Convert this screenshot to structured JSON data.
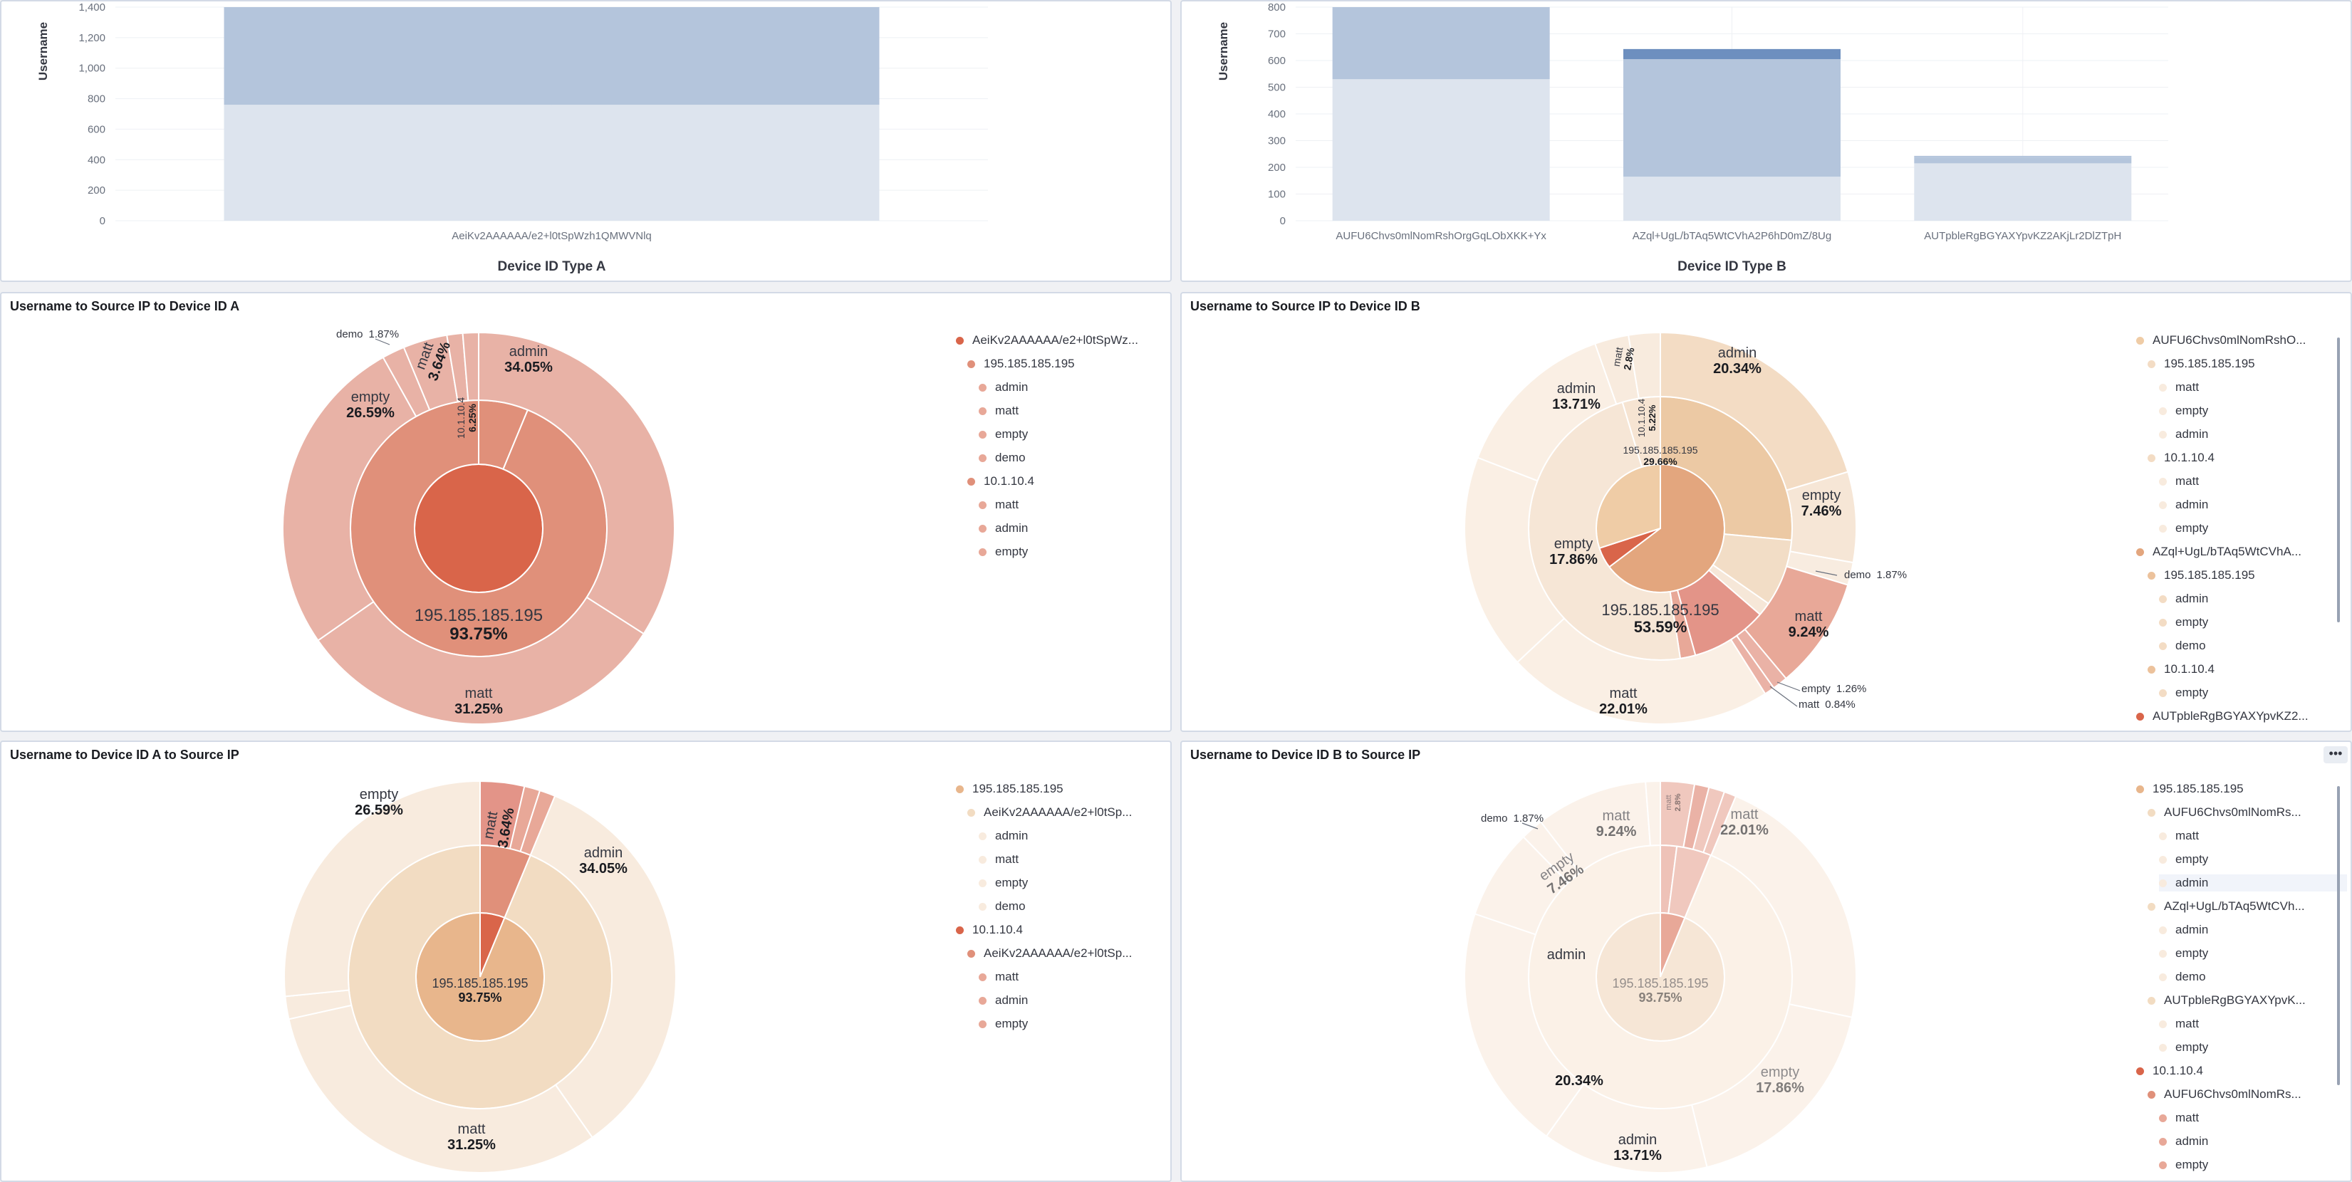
{
  "panels": {
    "bar_a": {
      "xlabel": "Device ID Type A",
      "ylabel": "Username"
    },
    "bar_b": {
      "xlabel": "Device ID Type B",
      "ylabel": "Username"
    },
    "pie_tl": {
      "title": "Username to Source IP to Device ID A"
    },
    "pie_tr": {
      "title": "Username to Source IP to Device ID B"
    },
    "pie_bl": {
      "title": "Username to Device ID A to Source IP"
    },
    "pie_br": {
      "title": "Username to Device ID B to Source IP",
      "menu_label": "•••"
    }
  },
  "chart_data": [
    {
      "type": "bar",
      "id": "bar_a",
      "xlabel": "Device ID Type A",
      "ylabel": "Username",
      "categories": [
        "AeiKv2AAAAAA/e2+l0tSpWzh1QMWVNlq"
      ],
      "yticks": [
        "0",
        "200",
        "400",
        "600",
        "800",
        "1,000",
        "1,200",
        "1,400"
      ],
      "ylim": [
        0,
        1400
      ],
      "stack": [
        {
          "values": [
            760
          ],
          "color": "#dde4ee"
        },
        {
          "values": [
            640
          ],
          "color": "#b4c5dc"
        }
      ]
    },
    {
      "type": "bar",
      "id": "bar_b",
      "xlabel": "Device ID Type B",
      "ylabel": "Username",
      "categories": [
        "AUFU6Chvs0mlNomRshOrgGqLObXKK+Yx",
        "AZql+UgL/bTAq5WtCVhA2P6hD0mZ/8Ug",
        "AUTpbleRgBGYAXYpvKZ2AKjLr2DlZTpH"
      ],
      "yticks": [
        "0",
        "100",
        "200",
        "300",
        "400",
        "500",
        "600",
        "700",
        "800"
      ],
      "ylim": [
        0,
        800
      ],
      "stack": [
        {
          "values": [
            530,
            165,
            215
          ],
          "color": "#dde4ee"
        },
        {
          "values": [
            270,
            440,
            20
          ],
          "color": "#b4c5dc"
        },
        {
          "values": [
            0,
            0,
            8
          ],
          "color": "#b4c5dc"
        },
        {
          "values": [
            0,
            38,
            0
          ],
          "color": "#6d8fbf"
        }
      ]
    },
    {
      "type": "pie",
      "id": "pie_tl",
      "rings": [
        [
          {
            "v": 100,
            "color": "#d9654a"
          }
        ],
        [
          {
            "v": 6.25,
            "color": "#e0907a"
          },
          {
            "v": 93.75,
            "color": "#e0907a"
          }
        ],
        [
          {
            "v": 34.05,
            "color": "#e8b2a6"
          },
          {
            "v": 31.25,
            "color": "#e8b2a6"
          },
          {
            "v": 26.59,
            "color": "#e8b2a6"
          },
          {
            "v": 1.87,
            "color": "#e8b2a6"
          },
          {
            "v": 3.64,
            "color": "#e8b2a6"
          },
          {
            "v": 1.3,
            "color": "#e8b2a6"
          },
          {
            "v": 1.3,
            "color": "#e8b2a6"
          }
        ]
      ],
      "labels": [
        {
          "name": "admin",
          "pct": "34.05%"
        },
        {
          "name": "matt",
          "pct": "31.25%"
        },
        {
          "name": "empty",
          "pct": "26.59%"
        },
        {
          "name": "demo",
          "pct": "1.87%"
        },
        {
          "name": "matt",
          "pct": "3.64%"
        },
        {
          "name": "10.1.10.4",
          "pct": "6.25%"
        },
        {
          "name": "195.185.185.195",
          "pct": "93.75%"
        }
      ],
      "legend": [
        {
          "label": "AeiKv2AAAAAA/e2+l0tSpWz...",
          "level": 0,
          "color": "#d9654a"
        },
        {
          "label": "195.185.185.195",
          "level": 1,
          "color": "#e0907a"
        },
        {
          "label": "admin",
          "level": 2,
          "color": "#e8a898"
        },
        {
          "label": "matt",
          "level": 2,
          "color": "#e8a898"
        },
        {
          "label": "empty",
          "level": 2,
          "color": "#e8a898"
        },
        {
          "label": "demo",
          "level": 2,
          "color": "#e8a898"
        },
        {
          "label": "10.1.10.4",
          "level": 1,
          "color": "#e0907a"
        },
        {
          "label": "matt",
          "level": 2,
          "color": "#e8a898"
        },
        {
          "label": "admin",
          "level": 2,
          "color": "#e8a898"
        },
        {
          "label": "empty",
          "level": 2,
          "color": "#e8a898"
        }
      ]
    },
    {
      "type": "pie",
      "id": "pie_tr",
      "rings": [
        [
          {
            "v": 64.7,
            "color": "#e3a67e"
          },
          {
            "v": 5.3,
            "color": "#d9654a"
          },
          {
            "v": 30.0,
            "color": "#efcca6"
          }
        ],
        [
          {
            "v": 29.66,
            "color": "#ecc9a4"
          },
          {
            "v": 9.25,
            "color": "#f2ddc6"
          },
          {
            "v": 1.87,
            "color": "#f6e7d8"
          },
          {
            "v": 10.5,
            "color": "#e39488"
          },
          {
            "v": 2.1,
            "color": "#e8a898"
          },
          {
            "v": 53.59,
            "color": "#f6e6d6"
          },
          {
            "v": 5.22,
            "color": "#f6e4d2"
          }
        ],
        [
          {
            "v": 20.34,
            "color": "#f3dcc4"
          },
          {
            "v": 7.46,
            "color": "#f6e6d6"
          },
          {
            "v": 1.87,
            "color": "#f8ece0"
          },
          {
            "v": 9.24,
            "color": "#e8a898"
          },
          {
            "v": 1.26,
            "color": "#eab2a6"
          },
          {
            "v": 0.84,
            "color": "#eab2a6"
          },
          {
            "v": 22.01,
            "color": "#faefe4"
          },
          {
            "v": 17.86,
            "color": "#faefe4"
          },
          {
            "v": 13.71,
            "color": "#faefe4"
          },
          {
            "v": 2.8,
            "color": "#f8ebde"
          },
          {
            "v": 2.61,
            "color": "#f8ebde"
          }
        ]
      ],
      "labels": [
        {
          "name": "admin",
          "pct": "20.34%"
        },
        {
          "name": "empty",
          "pct": "7.46%"
        },
        {
          "name": "demo",
          "pct": "1.87%"
        },
        {
          "name": "matt",
          "pct": "9.24%"
        },
        {
          "name": "empty",
          "pct": "1.26%"
        },
        {
          "name": "matt",
          "pct": "0.84%"
        },
        {
          "name": "matt",
          "pct": "22.01%"
        },
        {
          "name": "empty",
          "pct": "17.86%"
        },
        {
          "name": "admin",
          "pct": "13.71%"
        },
        {
          "name": "matt",
          "pct": "2.8%"
        },
        {
          "name": "10.1.10.4",
          "pct": "5.22%"
        },
        {
          "name": "195.185.185.195",
          "pct": "29.66%"
        },
        {
          "name": "195.185.185.195",
          "pct": "53.59%"
        }
      ],
      "legend": [
        {
          "label": "AUFU6Chvs0mlNomRshO...",
          "level": 0,
          "color": "#efcca6"
        },
        {
          "label": "195.185.185.195",
          "level": 1,
          "color": "#f3dcc4"
        },
        {
          "label": "matt",
          "level": 2,
          "color": "#f8ebde"
        },
        {
          "label": "empty",
          "level": 2,
          "color": "#f8ebde"
        },
        {
          "label": "admin",
          "level": 2,
          "color": "#f8ebde"
        },
        {
          "label": "10.1.10.4",
          "level": 1,
          "color": "#f3dcc4"
        },
        {
          "label": "matt",
          "level": 2,
          "color": "#f8ebde"
        },
        {
          "label": "admin",
          "level": 2,
          "color": "#f8ebde"
        },
        {
          "label": "empty",
          "level": 2,
          "color": "#f8ebde"
        },
        {
          "label": "AZql+UgL/bTAq5WtCVhA...",
          "level": 0,
          "color": "#e3a67e"
        },
        {
          "label": "195.185.185.195",
          "level": 1,
          "color": "#ecc29c"
        },
        {
          "label": "admin",
          "level": 2,
          "color": "#f3dcc4"
        },
        {
          "label": "empty",
          "level": 2,
          "color": "#f3dcc4"
        },
        {
          "label": "demo",
          "level": 2,
          "color": "#f3dcc4"
        },
        {
          "label": "10.1.10.4",
          "level": 1,
          "color": "#ecc29c"
        },
        {
          "label": "empty",
          "level": 2,
          "color": "#f3dcc4"
        },
        {
          "label": "AUTpbleRgBGYAXYpvKZ2...",
          "level": 0,
          "color": "#d9654a"
        }
      ]
    },
    {
      "type": "pie",
      "id": "pie_bl",
      "rings": [
        [
          {
            "v": 6.25,
            "color": "#d9654a"
          },
          {
            "v": 93.75,
            "color": "#e8b68c"
          }
        ],
        [
          {
            "v": 6.25,
            "color": "#e0907a"
          },
          {
            "v": 93.75,
            "color": "#f2dcc2"
          }
        ],
        [
          {
            "v": 3.64,
            "color": "#e39488"
          },
          {
            "v": 1.3,
            "color": "#e8a898"
          },
          {
            "v": 1.3,
            "color": "#e8a898"
          },
          {
            "v": 34.05,
            "color": "#f8ebde"
          },
          {
            "v": 31.25,
            "color": "#f8ebde"
          },
          {
            "v": 1.87,
            "color": "#f8ebde"
          },
          {
            "v": 26.59,
            "color": "#f8ebde"
          }
        ]
      ],
      "labels": [
        {
          "name": "matt",
          "pct": "3.64%"
        },
        {
          "name": "admin",
          "pct": "34.05%"
        },
        {
          "name": "matt",
          "pct": "31.25%"
        },
        {
          "name": "empty",
          "pct": "26.59%"
        },
        {
          "name": "195.185.185.195",
          "pct": "93.75%"
        }
      ],
      "legend": [
        {
          "label": "195.185.185.195",
          "level": 0,
          "color": "#e8b68c"
        },
        {
          "label": "AeiKv2AAAAAA/e2+l0tSp...",
          "level": 1,
          "color": "#f2dcc2"
        },
        {
          "label": "admin",
          "level": 2,
          "color": "#f8ebde"
        },
        {
          "label": "matt",
          "level": 2,
          "color": "#f8ebde"
        },
        {
          "label": "empty",
          "level": 2,
          "color": "#f8ebde"
        },
        {
          "label": "demo",
          "level": 2,
          "color": "#f8ebde"
        },
        {
          "label": "10.1.10.4",
          "level": 0,
          "color": "#d9654a"
        },
        {
          "label": "AeiKv2AAAAAA/e2+l0tSp...",
          "level": 1,
          "color": "#e0907a"
        },
        {
          "label": "matt",
          "level": 2,
          "color": "#e8a898"
        },
        {
          "label": "admin",
          "level": 2,
          "color": "#e8a898"
        },
        {
          "label": "empty",
          "level": 2,
          "color": "#e8a898"
        }
      ]
    },
    {
      "type": "pie",
      "id": "pie_br",
      "rings": [
        [
          {
            "v": 6.25,
            "color": "#e8a898"
          },
          {
            "v": 93.75,
            "color": "#f6e6d6"
          }
        ],
        [
          {
            "v": 2.0,
            "color": "#eec2b8"
          },
          {
            "v": 4.25,
            "color": "#f0c8be"
          },
          {
            "v": 93.75,
            "color": "#fbf1e7"
          }
        ],
        [
          {
            "v": 2.8,
            "color": "#f0c8be"
          },
          {
            "v": 1.2,
            "color": "#eab2a6"
          },
          {
            "v": 1.3,
            "color": "#f0c8be"
          },
          {
            "v": 1.0,
            "color": "#f0c8be"
          },
          {
            "v": 22.01,
            "color": "#fbf2ea"
          },
          {
            "v": 17.86,
            "color": "#fbf2ea"
          },
          {
            "v": 13.71,
            "color": "#fbf2ea"
          },
          {
            "v": 20.34,
            "color": "#fbf2ea"
          },
          {
            "v": 7.46,
            "color": "#fbf2ea"
          },
          {
            "v": 1.87,
            "color": "#fbf2ea"
          },
          {
            "v": 9.24,
            "color": "#fbf2ea"
          },
          {
            "v": 1.21,
            "color": "#fbf2ea"
          }
        ]
      ],
      "labels": [
        {
          "name": "matt",
          "pct": "22.01%"
        },
        {
          "name": "empty",
          "pct": "17.86%"
        },
        {
          "name": "admin",
          "pct": "13.71%"
        },
        {
          "name": "admin",
          "pct": ""
        },
        {
          "name": "",
          "pct": "20.34%"
        },
        {
          "name": "empty",
          "pct": "7.46%"
        },
        {
          "name": "demo",
          "pct": "1.87%"
        },
        {
          "name": "matt",
          "pct": "9.24%"
        },
        {
          "name": "matt",
          "pct": "2.8%"
        },
        {
          "name": "195.185.185.195",
          "pct": "93.75%"
        }
      ],
      "legend": [
        {
          "label": "195.185.185.195",
          "level": 0,
          "color": "#e8b68c"
        },
        {
          "label": "AUFU6Chvs0mlNomRs...",
          "level": 1,
          "color": "#f2dcc2"
        },
        {
          "label": "matt",
          "level": 2,
          "color": "#f8ebde"
        },
        {
          "label": "empty",
          "level": 2,
          "color": "#f8ebde"
        },
        {
          "label": "admin",
          "level": 2,
          "color": "#f8ebde",
          "highlight": true
        },
        {
          "label": "AZql+UgL/bTAq5WtCVh...",
          "level": 1,
          "color": "#f2dcc2"
        },
        {
          "label": "admin",
          "level": 2,
          "color": "#f8ebde"
        },
        {
          "label": "empty",
          "level": 2,
          "color": "#f8ebde"
        },
        {
          "label": "demo",
          "level": 2,
          "color": "#f8ebde"
        },
        {
          "label": "AUTpbleRgBGYAXYpvK...",
          "level": 1,
          "color": "#f2dcc2"
        },
        {
          "label": "matt",
          "level": 2,
          "color": "#f8ebde"
        },
        {
          "label": "empty",
          "level": 2,
          "color": "#f8ebde"
        },
        {
          "label": "10.1.10.4",
          "level": 0,
          "color": "#d9654a"
        },
        {
          "label": "AUFU6Chvs0mlNomRs...",
          "level": 1,
          "color": "#e0907a"
        },
        {
          "label": "matt",
          "level": 2,
          "color": "#e8a898"
        },
        {
          "label": "admin",
          "level": 2,
          "color": "#e8a898"
        },
        {
          "label": "empty",
          "level": 2,
          "color": "#e8a898"
        }
      ]
    }
  ]
}
